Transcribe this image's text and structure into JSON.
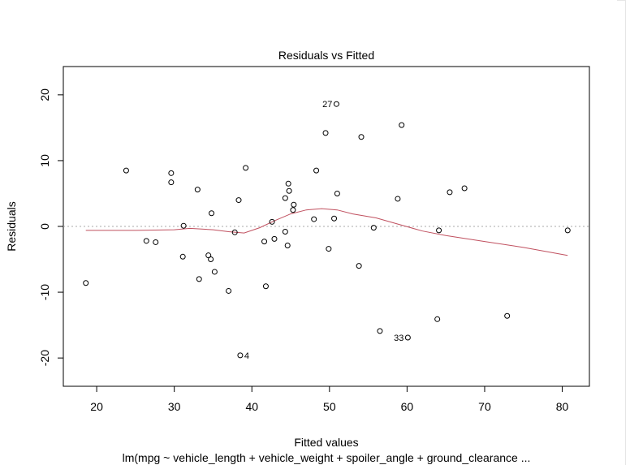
{
  "chart_data": {
    "type": "scatter",
    "title": "Residuals vs Fitted",
    "xlabel": "Fitted values",
    "ylabel": "Residuals",
    "subtitle": "lm(mpg ~ vehicle_length + vehicle_weight + spoiler_angle + ground_clearance ...",
    "xlim": [
      15.7,
      83.5
    ],
    "ylim": [
      -24.3,
      24.3
    ],
    "x_ticks": [
      20,
      30,
      40,
      50,
      60,
      70,
      80
    ],
    "y_ticks": [
      -20,
      -10,
      0,
      10,
      20
    ],
    "grid": false,
    "reference_line": {
      "y": 0,
      "style": "dotted",
      "color": "#aaaaaa"
    },
    "colors": {
      "points": "#000000",
      "smooth": "#c0505f",
      "reference": "#aaaaaa"
    },
    "points": [
      {
        "x": 18.6,
        "y": -8.6
      },
      {
        "x": 23.8,
        "y": 8.5
      },
      {
        "x": 26.4,
        "y": -2.2
      },
      {
        "x": 27.6,
        "y": -2.4
      },
      {
        "x": 29.6,
        "y": 8.1
      },
      {
        "x": 29.6,
        "y": 6.7
      },
      {
        "x": 31.2,
        "y": 0.1
      },
      {
        "x": 31.1,
        "y": -4.6
      },
      {
        "x": 33.0,
        "y": 5.6
      },
      {
        "x": 33.2,
        "y": -8.0
      },
      {
        "x": 34.4,
        "y": -4.4
      },
      {
        "x": 34.7,
        "y": -5.0
      },
      {
        "x": 34.8,
        "y": 2.0
      },
      {
        "x": 35.2,
        "y": -6.9
      },
      {
        "x": 37.0,
        "y": -9.8
      },
      {
        "x": 37.8,
        "y": -0.9
      },
      {
        "x": 38.3,
        "y": 4.0
      },
      {
        "x": 38.5,
        "y": -19.6,
        "label": "4"
      },
      {
        "x": 39.2,
        "y": 8.9
      },
      {
        "x": 41.6,
        "y": -2.3
      },
      {
        "x": 41.8,
        "y": -9.1
      },
      {
        "x": 42.6,
        "y": 0.7
      },
      {
        "x": 42.9,
        "y": -1.9
      },
      {
        "x": 44.3,
        "y": 4.3
      },
      {
        "x": 44.3,
        "y": -0.8
      },
      {
        "x": 44.6,
        "y": -2.9
      },
      {
        "x": 44.7,
        "y": 6.5
      },
      {
        "x": 44.8,
        "y": 5.4
      },
      {
        "x": 45.3,
        "y": 2.5
      },
      {
        "x": 45.4,
        "y": 3.3
      },
      {
        "x": 48.0,
        "y": 1.1
      },
      {
        "x": 48.3,
        "y": 8.5
      },
      {
        "x": 49.5,
        "y": 14.2
      },
      {
        "x": 49.9,
        "y": -3.4
      },
      {
        "x": 50.6,
        "y": 1.2
      },
      {
        "x": 50.9,
        "y": 18.6,
        "label": "27"
      },
      {
        "x": 51.0,
        "y": 5.0
      },
      {
        "x": 53.8,
        "y": -6.0
      },
      {
        "x": 54.1,
        "y": 13.6
      },
      {
        "x": 55.7,
        "y": -0.2
      },
      {
        "x": 56.5,
        "y": -15.9
      },
      {
        "x": 58.8,
        "y": 4.2
      },
      {
        "x": 59.3,
        "y": 15.4
      },
      {
        "x": 60.1,
        "y": -16.9,
        "label": "33"
      },
      {
        "x": 63.9,
        "y": -14.1
      },
      {
        "x": 64.1,
        "y": -0.6
      },
      {
        "x": 65.5,
        "y": 5.2
      },
      {
        "x": 67.4,
        "y": 5.8
      },
      {
        "x": 72.9,
        "y": -13.6
      },
      {
        "x": 80.7,
        "y": -0.6
      }
    ],
    "smooth_line": {
      "x": [
        18.6,
        25,
        30,
        32,
        35,
        37,
        39,
        41,
        43,
        45,
        47,
        49,
        51,
        53,
        56,
        59,
        62,
        65,
        70,
        75,
        80.7
      ],
      "y": [
        -0.6,
        -0.6,
        -0.5,
        -0.3,
        -0.5,
        -0.8,
        -1.0,
        -0.2,
        0.9,
        1.9,
        2.5,
        2.7,
        2.5,
        1.9,
        1.3,
        0.3,
        -0.7,
        -1.4,
        -2.3,
        -3.2,
        -4.4
      ]
    }
  }
}
